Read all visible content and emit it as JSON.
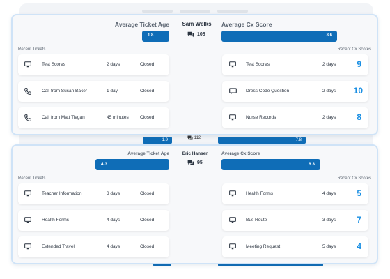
{
  "card1": {
    "left_label": "Average Ticket Age",
    "agent_name": "Sam Welks",
    "ticket_count": "108",
    "right_label": "Average Cx Score",
    "ticket_age_value": "1.8",
    "cx_score_value": "8.6",
    "recent_tickets_label": "Recent Tickets",
    "recent_scores_label": "Recent Cx Scores",
    "tickets": [
      {
        "icon": "monitor-icon",
        "title": "Test Scores",
        "age": "2 days",
        "status": "Closed"
      },
      {
        "icon": "phone-icon",
        "title": "Call from Susan Baker",
        "age": "1 day",
        "status": "Closed"
      },
      {
        "icon": "phone-icon",
        "title": "Call from Matt Tiegan",
        "age": "45 minutes",
        "status": "Closed"
      }
    ],
    "scores": [
      {
        "icon": "monitor-icon",
        "title": "Test Scores",
        "age": "2 days",
        "score": "9"
      },
      {
        "icon": "chat-icon",
        "title": "Dress Code Question",
        "age": "2 days",
        "score": "10"
      },
      {
        "icon": "monitor-icon",
        "title": "Nurse Records",
        "age": "2 days",
        "score": "8"
      }
    ]
  },
  "peek": {
    "ticket_age_value": "1.9",
    "ticket_count": "112",
    "cx_score_value": "7.8"
  },
  "card2": {
    "left_label": "Average Ticket Age",
    "agent_name": "Eric Hansen",
    "ticket_count": "95",
    "right_label": "Average Cx Score",
    "ticket_age_value": "4.3",
    "cx_score_value": "6.3",
    "recent_tickets_label": "Recent Tickets",
    "recent_scores_label": "Recent Cx Scores",
    "tickets": [
      {
        "icon": "monitor-icon",
        "title": "Teacher Information",
        "age": "3 days",
        "status": "Closed"
      },
      {
        "icon": "monitor-icon",
        "title": "Health Forms",
        "age": "4 days",
        "status": "Closed"
      },
      {
        "icon": "monitor-icon",
        "title": "Extended Travel",
        "age": "4 days",
        "status": "Closed"
      }
    ],
    "scores": [
      {
        "icon": "monitor-icon",
        "title": "Health Forms",
        "age": "4 days",
        "score": "5"
      },
      {
        "icon": "monitor-icon",
        "title": "Bus Route",
        "age": "3 days",
        "score": "7"
      },
      {
        "icon": "monitor-icon",
        "title": "Meeting Request",
        "age": "5 days",
        "score": "4"
      }
    ]
  },
  "colors": {
    "accent": "#0f6db7",
    "score": "#1a8fe3",
    "card_border": "#cfe3f7"
  }
}
